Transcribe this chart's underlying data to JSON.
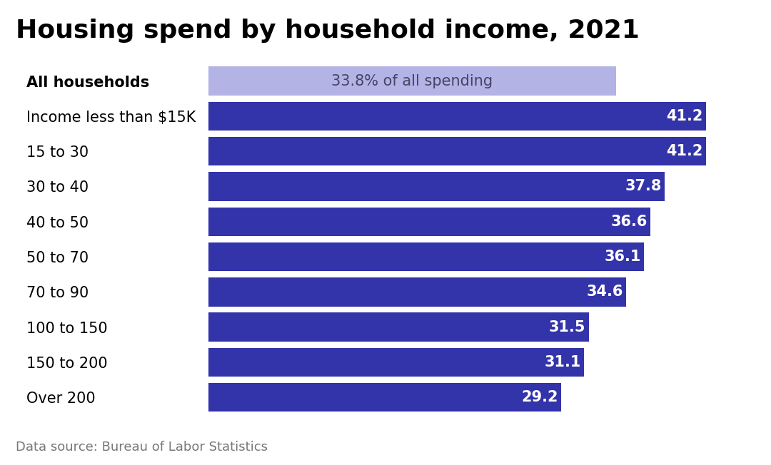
{
  "title": "Housing spend by household income, 2021",
  "categories": [
    "All households",
    "Income less than $15K",
    "15 to 30",
    "30 to 40",
    "40 to 50",
    "50 to 70",
    "70 to 90",
    "100 to 150",
    "150 to 200",
    "Over 200"
  ],
  "values": [
    33.8,
    41.2,
    41.2,
    37.8,
    36.6,
    36.1,
    34.6,
    31.5,
    31.1,
    29.2
  ],
  "bar_colors": [
    "#b3b3e6",
    "#3333aa",
    "#3333aa",
    "#3333aa",
    "#3333aa",
    "#3333aa",
    "#3333aa",
    "#3333aa",
    "#3333aa",
    "#3333aa"
  ],
  "label_texts": [
    "33.8% of all spending",
    "41.2",
    "41.2",
    "37.8",
    "36.6",
    "36.1",
    "34.6",
    "31.5",
    "31.1",
    "29.2"
  ],
  "label_colors": [
    "#444466",
    "#ffffff",
    "#ffffff",
    "#ffffff",
    "#ffffff",
    "#ffffff",
    "#ffffff",
    "#ffffff",
    "#ffffff",
    "#ffffff"
  ],
  "xlim": [
    0,
    45
  ],
  "footnote": "Data source: Bureau of Labor Statistics",
  "title_fontsize": 26,
  "label_fontsize": 15,
  "tick_fontsize": 15,
  "footnote_fontsize": 13,
  "background_color": "#ffffff",
  "bar_height": 0.82
}
